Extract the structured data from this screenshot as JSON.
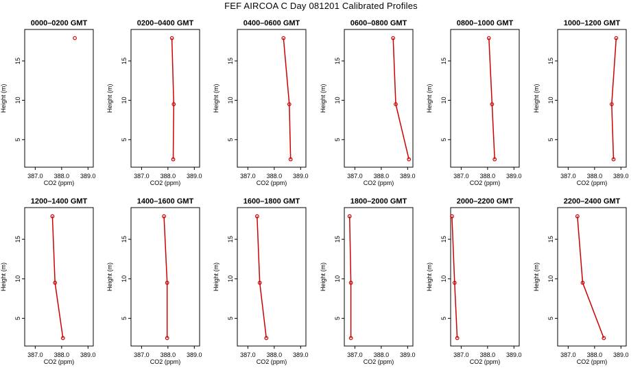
{
  "title": "FEF AIRCOA C  Day 081201  Calibrated Profiles",
  "colors": {
    "profile": "#cc0000",
    "axis": "#000000"
  },
  "chart_data": [
    {
      "type": "line",
      "title": "0000–0200 GMT",
      "xlabel": "CO2 (ppm)",
      "ylabel": "Height (m)",
      "xlim": [
        386.6,
        389.2
      ],
      "ylim": [
        1.5,
        19
      ],
      "xticks": [
        "387.0",
        "388.0",
        "389.0"
      ],
      "yticks": [
        "5",
        "10",
        "15"
      ],
      "x": [
        388.5
      ],
      "y": [
        17.9
      ]
    },
    {
      "type": "line",
      "title": "0200–0400 GMT",
      "xlabel": "CO2 (ppm)",
      "ylabel": "Height (m)",
      "xlim": [
        386.6,
        389.2
      ],
      "ylim": [
        1.5,
        19
      ],
      "xticks": [
        "387.0",
        "388.0",
        "389.0"
      ],
      "yticks": [
        "5",
        "10",
        "15"
      ],
      "x": [
        388.15,
        388.22,
        388.2
      ],
      "y": [
        17.9,
        9.5,
        2.5
      ]
    },
    {
      "type": "line",
      "title": "0400–0600 GMT",
      "xlabel": "CO2 (ppm)",
      "ylabel": "Height (m)",
      "xlim": [
        386.6,
        389.2
      ],
      "ylim": [
        1.5,
        19
      ],
      "xticks": [
        "387.0",
        "388.0",
        "389.0"
      ],
      "yticks": [
        "5",
        "10",
        "15"
      ],
      "x": [
        388.35,
        388.57,
        388.62
      ],
      "y": [
        17.9,
        9.5,
        2.5
      ]
    },
    {
      "type": "line",
      "title": "0600–0800 GMT",
      "xlabel": "CO2 (ppm)",
      "ylabel": "Height (m)",
      "xlim": [
        386.6,
        389.2
      ],
      "ylim": [
        1.5,
        19
      ],
      "xticks": [
        "387.0",
        "388.0",
        "389.0"
      ],
      "yticks": [
        "5",
        "10",
        "15"
      ],
      "x": [
        388.45,
        388.55,
        389.05
      ],
      "y": [
        17.9,
        9.5,
        2.5
      ]
    },
    {
      "type": "line",
      "title": "0800–1000 GMT",
      "xlabel": "CO2 (ppm)",
      "ylabel": "Height (m)",
      "xlim": [
        386.6,
        389.2
      ],
      "ylim": [
        1.5,
        19
      ],
      "xticks": [
        "387.0",
        "388.0",
        "389.0"
      ],
      "yticks": [
        "5",
        "10",
        "15"
      ],
      "x": [
        388.05,
        388.17,
        388.27
      ],
      "y": [
        17.9,
        9.5,
        2.5
      ]
    },
    {
      "type": "line",
      "title": "1000–1200 GMT",
      "xlabel": "CO2 (ppm)",
      "ylabel": "Height (m)",
      "xlim": [
        386.6,
        389.2
      ],
      "ylim": [
        1.5,
        19
      ],
      "xticks": [
        "387.0",
        "388.0",
        "389.0"
      ],
      "yticks": [
        "5",
        "10",
        "15"
      ],
      "x": [
        388.82,
        388.65,
        388.72
      ],
      "y": [
        17.9,
        9.5,
        2.5
      ]
    },
    {
      "type": "line",
      "title": "1200–1400 GMT",
      "xlabel": "CO2 (ppm)",
      "ylabel": "Height (m)",
      "xlim": [
        386.6,
        389.2
      ],
      "ylim": [
        1.5,
        19
      ],
      "xticks": [
        "387.0",
        "388.0",
        "389.0"
      ],
      "yticks": [
        "5",
        "10",
        "15"
      ],
      "x": [
        387.65,
        387.75,
        388.05
      ],
      "y": [
        17.9,
        9.5,
        2.5
      ]
    },
    {
      "type": "line",
      "title": "1400–1600 GMT",
      "xlabel": "CO2 (ppm)",
      "ylabel": "Height (m)",
      "xlim": [
        386.6,
        389.2
      ],
      "ylim": [
        1.5,
        19
      ],
      "xticks": [
        "387.0",
        "388.0",
        "389.0"
      ],
      "yticks": [
        "5",
        "10",
        "15"
      ],
      "x": [
        387.85,
        387.97,
        387.97
      ],
      "y": [
        17.9,
        9.5,
        2.5
      ]
    },
    {
      "type": "line",
      "title": "1600–1800 GMT",
      "xlabel": "CO2 (ppm)",
      "ylabel": "Height (m)",
      "xlim": [
        386.6,
        389.2
      ],
      "ylim": [
        1.5,
        19
      ],
      "xticks": [
        "387.0",
        "388.0",
        "389.0"
      ],
      "yticks": [
        "5",
        "10",
        "15"
      ],
      "x": [
        387.35,
        387.45,
        387.7
      ],
      "y": [
        17.9,
        9.5,
        2.5
      ]
    },
    {
      "type": "line",
      "title": "1800–2000 GMT",
      "xlabel": "CO2 (ppm)",
      "ylabel": "Height (m)",
      "xlim": [
        386.6,
        389.2
      ],
      "ylim": [
        1.5,
        19
      ],
      "xticks": [
        "387.0",
        "388.0",
        "389.0"
      ],
      "yticks": [
        "5",
        "10",
        "15"
      ],
      "x": [
        386.8,
        386.85,
        386.85
      ],
      "y": [
        17.9,
        9.5,
        2.5
      ]
    },
    {
      "type": "line",
      "title": "2000–2200 GMT",
      "xlabel": "CO2 (ppm)",
      "ylabel": "Height (m)",
      "xlim": [
        386.6,
        389.2
      ],
      "ylim": [
        1.5,
        19
      ],
      "xticks": [
        "387.0",
        "388.0",
        "389.0"
      ],
      "yticks": [
        "5",
        "10",
        "15"
      ],
      "x": [
        386.65,
        386.75,
        386.85
      ],
      "y": [
        17.9,
        9.5,
        2.5
      ]
    },
    {
      "type": "line",
      "title": "2200–2400 GMT",
      "xlabel": "CO2 (ppm)",
      "ylabel": "Height (m)",
      "xlim": [
        386.6,
        389.2
      ],
      "ylim": [
        1.5,
        19
      ],
      "xticks": [
        "387.0",
        "388.0",
        "389.0"
      ],
      "yticks": [
        "5",
        "10",
        "15"
      ],
      "x": [
        387.35,
        387.55,
        388.35
      ],
      "y": [
        17.9,
        9.5,
        2.5
      ]
    }
  ]
}
